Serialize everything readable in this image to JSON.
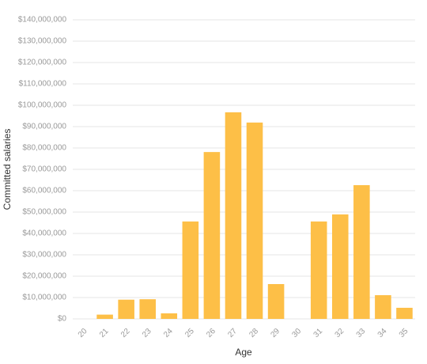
{
  "chart_data": {
    "type": "bar",
    "x_label": "Age",
    "y_label": "Committed salaries",
    "categories": [
      "20",
      "21",
      "22",
      "23",
      "24",
      "25",
      "26",
      "27",
      "28",
      "29",
      "30",
      "31",
      "32",
      "33",
      "34",
      "35"
    ],
    "values": [
      0,
      2000000,
      9000000,
      9200000,
      2600000,
      45600000,
      78100000,
      96700000,
      91900000,
      16300000,
      0,
      45600000,
      48900000,
      62600000,
      11100000,
      5200000
    ],
    "color": "#fdbf47",
    "ylim": [
      0,
      140000000
    ],
    "yticks": [
      {
        "value": 0,
        "label": "$0"
      },
      {
        "value": 10000000,
        "label": "$10,000,000"
      },
      {
        "value": 20000000,
        "label": "$20,000,000"
      },
      {
        "value": 30000000,
        "label": "$30,000,000"
      },
      {
        "value": 40000000,
        "label": "$40,000,000"
      },
      {
        "value": 50000000,
        "label": "$50,000,000"
      },
      {
        "value": 60000000,
        "label": "$60,000,000"
      },
      {
        "value": 70000000,
        "label": "$70,000,000"
      },
      {
        "value": 80000000,
        "label": "$80,000,000"
      },
      {
        "value": 90000000,
        "label": "$90,000,000"
      },
      {
        "value": 100000000,
        "label": "$100,000,000"
      },
      {
        "value": 110000000,
        "label": "$110,000,000"
      },
      {
        "value": 120000000,
        "label": "$120,000,000"
      },
      {
        "value": 130000000,
        "label": "$130,000,000"
      },
      {
        "value": 140000000,
        "label": "$140,000,000"
      }
    ],
    "grid": true
  }
}
